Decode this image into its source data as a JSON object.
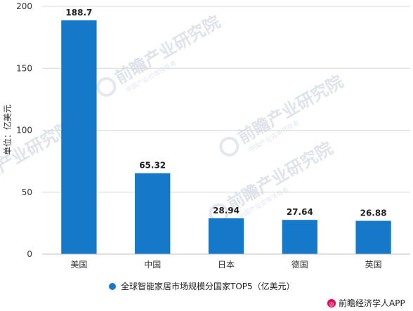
{
  "chart_data": {
    "type": "bar",
    "categories": [
      "美国",
      "中国",
      "日本",
      "德国",
      "英国"
    ],
    "series": [
      {
        "name": "全球智能家居市场规模分国家TOP5（亿美元）",
        "values": [
          188.7,
          65.32,
          28.94,
          27.64,
          26.88
        ],
        "color": "#1578c9"
      }
    ],
    "data_labels": [
      "188.7",
      "65.32",
      "28.94",
      "27.64",
      "26.88"
    ],
    "ylabel": "单位：亿美元",
    "ylim": [
      0,
      200
    ],
    "yticks": [
      0,
      50,
      100,
      150,
      200
    ],
    "grid": true,
    "legend_position": "bottom"
  },
  "watermark": {
    "brand": "前瞻产业研究院",
    "sub": "中国产业咨询领导者"
  },
  "credit": {
    "text": "前瞻经济学人APP"
  },
  "colors": {
    "bar": "#1578c9",
    "grid": "#d9d9d9",
    "axis": "#bfbfbf"
  }
}
